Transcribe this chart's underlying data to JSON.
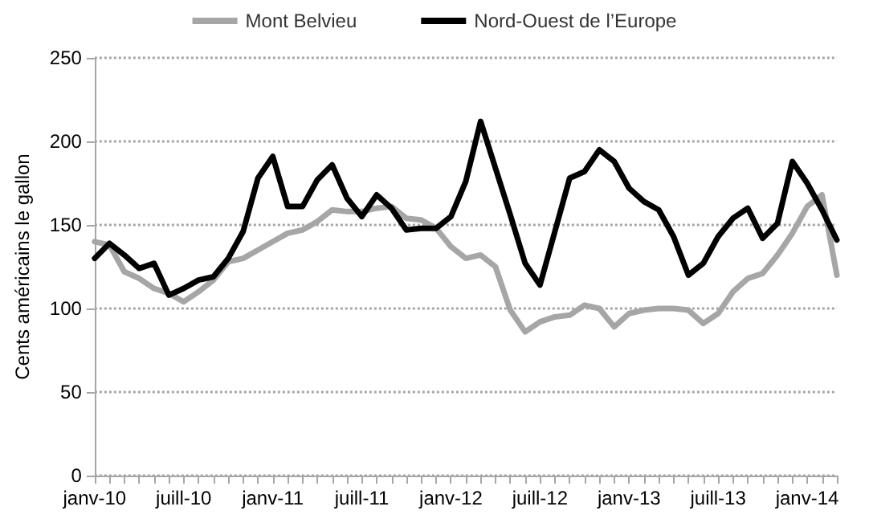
{
  "chart_data": {
    "type": "line",
    "ylabel": "Cents américains le gallon",
    "categories": [
      "janv-10",
      null,
      null,
      null,
      null,
      null,
      "juill-10",
      null,
      null,
      null,
      null,
      null,
      "janv-11",
      null,
      null,
      null,
      null,
      null,
      "juill-11",
      null,
      null,
      null,
      null,
      null,
      "janv-12",
      null,
      null,
      null,
      null,
      null,
      "juill-12",
      null,
      null,
      null,
      null,
      null,
      "janv-13",
      null,
      null,
      null,
      null,
      null,
      "juill-13",
      null,
      null,
      null,
      null,
      null,
      "janv-14",
      null,
      null
    ],
    "series": [
      {
        "name": "Mont Belvieu",
        "color": "#a6a6a6",
        "values": [
          140,
          138,
          122,
          118,
          112,
          109,
          104,
          110,
          117,
          128,
          130,
          135,
          140,
          145,
          147,
          152,
          159,
          158,
          158,
          160,
          161,
          154,
          153,
          148,
          137,
          130,
          132,
          125,
          99,
          86,
          92,
          95,
          96,
          102,
          100,
          89,
          97,
          99,
          100,
          100,
          99,
          91,
          97,
          110,
          118,
          121,
          132,
          145,
          161,
          168,
          120
        ]
      },
      {
        "name": "Nord-Ouest de l’Europe",
        "color": "#000000",
        "values": [
          130,
          139,
          132,
          124,
          127,
          108,
          112,
          117,
          119,
          130,
          146,
          178,
          191,
          161,
          161,
          177,
          186,
          166,
          155,
          168,
          160,
          147,
          148,
          148,
          155,
          176,
          212,
          184,
          156,
          127,
          114,
          146,
          178,
          182,
          195,
          188,
          172,
          164,
          159,
          143,
          120,
          127,
          143,
          154,
          160,
          142,
          151,
          188,
          175,
          159,
          141
        ]
      }
    ],
    "ylim": [
      0,
      250
    ],
    "yticks": [
      0,
      50,
      100,
      150,
      200,
      250
    ],
    "grid": "y",
    "legend": "top",
    "marker": "none",
    "line_style": "solid"
  }
}
